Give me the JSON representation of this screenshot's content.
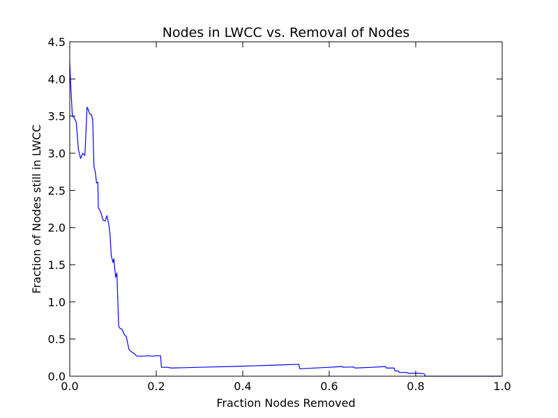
{
  "chart_data": {
    "type": "line",
    "title": "Nodes in LWCC vs. Removal of Nodes",
    "xlabel": "Fraction Nodes Removed",
    "ylabel": "Fraction of Nodes still in LWCC",
    "xlim": [
      0.0,
      1.0
    ],
    "ylim": [
      0.0,
      4.5
    ],
    "xticks": [
      "0.0",
      "0.2",
      "0.4",
      "0.6",
      "0.8",
      "1.0"
    ],
    "yticks": [
      "0.0",
      "0.5",
      "1.0",
      "1.5",
      "2.0",
      "2.5",
      "3.0",
      "3.5",
      "4.0",
      "4.5"
    ],
    "grid": false,
    "line_color": "#0000ff",
    "series": [
      {
        "x": [
          0.0,
          0.002,
          0.006,
          0.01,
          0.015,
          0.02,
          0.025,
          0.03,
          0.035,
          0.04,
          0.042,
          0.046,
          0.05,
          0.053,
          0.056,
          0.059,
          0.062,
          0.065,
          0.066,
          0.068,
          0.072,
          0.077,
          0.082,
          0.086,
          0.09,
          0.093,
          0.096,
          0.1,
          0.102,
          0.106,
          0.109,
          0.113,
          0.115,
          0.118,
          0.121,
          0.126,
          0.131,
          0.134,
          0.137,
          0.14,
          0.145,
          0.15,
          0.155,
          0.16,
          0.17,
          0.18,
          0.19,
          0.2,
          0.21,
          0.212,
          0.225,
          0.235,
          0.3,
          0.335,
          0.4,
          0.425,
          0.48,
          0.53,
          0.532,
          0.6,
          0.63,
          0.632,
          0.655,
          0.66,
          0.7,
          0.73,
          0.732,
          0.74,
          0.75,
          0.752,
          0.76,
          0.762,
          0.77,
          0.78,
          0.782,
          0.79,
          0.8,
          0.81,
          0.82,
          0.822,
          0.85,
          1.0
        ],
        "y": [
          4.22,
          3.95,
          3.5,
          3.48,
          3.42,
          3.05,
          2.93,
          3.0,
          2.97,
          3.62,
          3.6,
          3.53,
          3.52,
          3.45,
          2.82,
          2.75,
          2.6,
          2.61,
          2.27,
          2.25,
          2.2,
          2.1,
          2.09,
          2.16,
          2.05,
          1.92,
          1.62,
          1.53,
          1.58,
          1.33,
          1.39,
          0.68,
          0.65,
          0.64,
          0.63,
          0.56,
          0.53,
          0.44,
          0.36,
          0.34,
          0.32,
          0.3,
          0.27,
          0.27,
          0.27,
          0.275,
          0.27,
          0.275,
          0.275,
          0.12,
          0.12,
          0.11,
          0.12,
          0.125,
          0.135,
          0.14,
          0.15,
          0.16,
          0.1,
          0.12,
          0.13,
          0.12,
          0.125,
          0.11,
          0.12,
          0.13,
          0.11,
          0.11,
          0.11,
          0.07,
          0.07,
          0.05,
          0.05,
          0.05,
          0.04,
          0.04,
          0.04,
          0.04,
          0.03,
          0.0,
          0.0,
          0.0
        ]
      }
    ]
  }
}
